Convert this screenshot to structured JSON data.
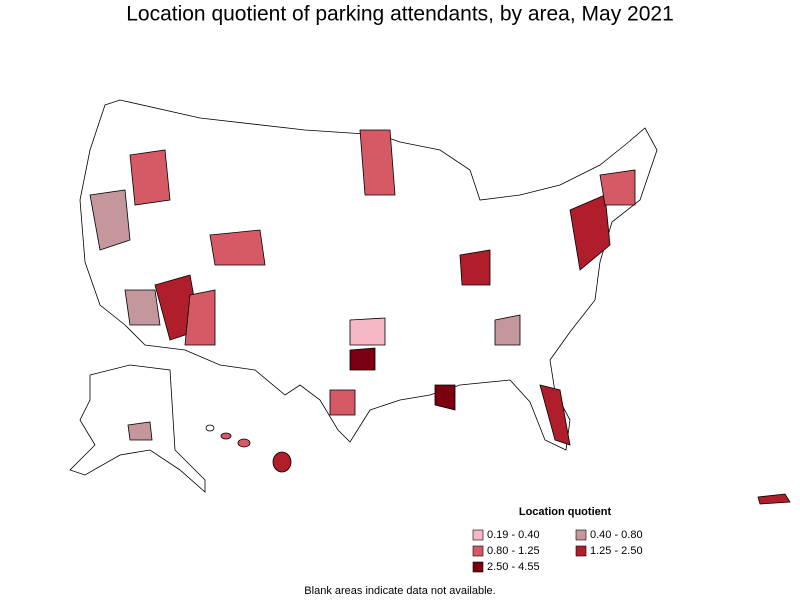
{
  "header": {
    "title": "Location quotient of parking attendants, by area, May 2021"
  },
  "legend": {
    "title": "Location quotient",
    "items": [
      {
        "label": "0.19 - 0.40",
        "color": "#f6b8c4"
      },
      {
        "label": "0.40 - 0.80",
        "color": "#c4979c"
      },
      {
        "label": "0.80 - 1.25",
        "color": "#d55a66"
      },
      {
        "label": "1.25 - 2.50",
        "color": "#b01e2c"
      },
      {
        "label": "2.50 - 4.55",
        "color": "#7a0010"
      }
    ]
  },
  "footnote": "Blank areas indicate data not available."
}
